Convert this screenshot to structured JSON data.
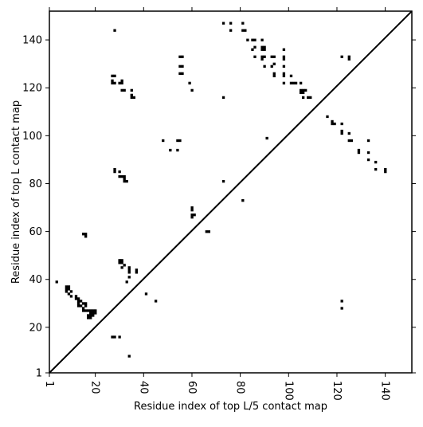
{
  "chart_data": {
    "type": "scatter",
    "title": "",
    "xlabel": "Residue index of top L/5 contact map",
    "ylabel": "Residue index of top L contact map",
    "xlim": [
      1,
      151
    ],
    "ylim": [
      1,
      152
    ],
    "x_ticks": [
      1,
      20,
      40,
      60,
      80,
      100,
      120,
      140
    ],
    "y_ticks": [
      1,
      20,
      40,
      60,
      80,
      100,
      120,
      140
    ],
    "x_tick_labels": [
      "1",
      "20",
      "40",
      "60",
      "80",
      "100",
      "120",
      "140"
    ],
    "y_tick_labels": [
      "1",
      "20",
      "40",
      "60",
      "80",
      "100",
      "120",
      "140"
    ],
    "x_tick_rotation": -90,
    "grid": false,
    "diagonal_line": true,
    "marker": "square",
    "marker_color": "#000000",
    "points": [
      [
        28,
        144
      ],
      [
        73,
        147
      ],
      [
        76,
        147
      ],
      [
        81,
        147
      ],
      [
        76,
        144
      ],
      [
        81,
        144
      ],
      [
        82,
        144
      ],
      [
        83,
        140
      ],
      [
        85,
        140
      ],
      [
        86,
        140
      ],
      [
        89,
        140
      ],
      [
        86,
        137
      ],
      [
        85,
        136
      ],
      [
        89,
        137
      ],
      [
        90,
        137
      ],
      [
        89,
        136
      ],
      [
        90,
        136
      ],
      [
        98,
        136
      ],
      [
        86,
        133
      ],
      [
        89,
        133
      ],
      [
        90,
        133
      ],
      [
        89,
        132
      ],
      [
        93,
        133
      ],
      [
        94,
        133
      ],
      [
        98,
        133
      ],
      [
        98,
        132
      ],
      [
        122,
        133
      ],
      [
        125,
        133
      ],
      [
        125,
        132
      ],
      [
        55,
        133
      ],
      [
        56,
        133
      ],
      [
        55,
        129
      ],
      [
        56,
        129
      ],
      [
        90,
        129
      ],
      [
        93,
        129
      ],
      [
        94,
        130
      ],
      [
        98,
        129
      ],
      [
        94,
        126
      ],
      [
        94,
        125
      ],
      [
        98,
        126
      ],
      [
        98,
        125
      ],
      [
        55,
        126
      ],
      [
        56,
        126
      ],
      [
        27,
        125
      ],
      [
        28,
        125
      ],
      [
        27,
        123
      ],
      [
        27,
        122
      ],
      [
        28,
        122
      ],
      [
        30,
        122
      ],
      [
        31,
        123
      ],
      [
        31,
        122
      ],
      [
        59,
        122
      ],
      [
        98,
        122
      ],
      [
        101,
        122
      ],
      [
        102,
        122
      ],
      [
        103,
        122
      ],
      [
        105,
        122
      ],
      [
        31,
        119
      ],
      [
        32,
        119
      ],
      [
        35,
        119
      ],
      [
        60,
        119
      ],
      [
        105,
        119
      ],
      [
        106,
        119
      ],
      [
        107,
        119
      ],
      [
        105,
        118
      ],
      [
        106,
        118
      ],
      [
        35,
        117
      ],
      [
        35,
        116
      ],
      [
        36,
        116
      ],
      [
        73,
        116
      ],
      [
        106,
        116
      ],
      [
        108,
        116
      ],
      [
        109,
        116
      ],
      [
        101,
        125
      ],
      [
        116,
        108
      ],
      [
        118,
        106
      ],
      [
        118,
        105
      ],
      [
        119,
        105
      ],
      [
        122,
        105
      ],
      [
        122,
        102
      ],
      [
        122,
        101
      ],
      [
        125,
        101
      ],
      [
        125,
        98
      ],
      [
        126,
        98
      ],
      [
        129,
        94
      ],
      [
        129,
        93
      ],
      [
        133,
        98
      ],
      [
        133,
        93
      ],
      [
        133,
        90
      ],
      [
        136,
        89
      ],
      [
        136,
        86
      ],
      [
        140,
        86
      ],
      [
        140,
        85
      ],
      [
        91,
        99
      ],
      [
        48,
        98
      ],
      [
        54,
        98
      ],
      [
        55,
        98
      ],
      [
        51,
        94
      ],
      [
        54,
        94
      ],
      [
        28,
        86
      ],
      [
        28,
        85
      ],
      [
        30,
        85
      ],
      [
        30,
        83
      ],
      [
        31,
        83
      ],
      [
        32,
        83
      ],
      [
        32,
        82
      ],
      [
        32,
        81
      ],
      [
        33,
        81
      ],
      [
        73,
        81
      ],
      [
        81,
        73
      ],
      [
        60,
        70
      ],
      [
        60,
        69
      ],
      [
        60,
        67
      ],
      [
        61,
        67
      ],
      [
        60,
        66
      ],
      [
        66,
        60
      ],
      [
        67,
        60
      ],
      [
        15,
        59
      ],
      [
        16,
        59
      ],
      [
        16,
        58
      ],
      [
        30,
        48
      ],
      [
        31,
        48
      ],
      [
        30,
        47
      ],
      [
        31,
        47
      ],
      [
        31,
        45
      ],
      [
        32,
        46
      ],
      [
        34,
        45
      ],
      [
        34,
        44
      ],
      [
        37,
        44
      ],
      [
        34,
        43
      ],
      [
        37,
        43
      ],
      [
        34,
        41
      ],
      [
        33,
        39
      ],
      [
        4,
        39
      ],
      [
        8,
        37
      ],
      [
        9,
        37
      ],
      [
        8,
        36
      ],
      [
        9,
        36
      ],
      [
        8,
        35
      ],
      [
        10,
        35
      ],
      [
        9,
        34
      ],
      [
        10,
        33
      ],
      [
        12,
        33
      ],
      [
        12,
        32
      ],
      [
        13,
        32
      ],
      [
        13,
        31
      ],
      [
        14,
        31
      ],
      [
        13,
        30
      ],
      [
        15,
        30
      ],
      [
        16,
        30
      ],
      [
        13,
        29
      ],
      [
        14,
        29
      ],
      [
        16,
        29
      ],
      [
        15,
        28
      ],
      [
        15,
        27
      ],
      [
        16,
        27
      ],
      [
        17,
        27
      ],
      [
        18,
        27
      ],
      [
        19,
        27
      ],
      [
        20,
        27
      ],
      [
        18,
        26
      ],
      [
        19,
        26
      ],
      [
        20,
        26
      ],
      [
        17,
        25
      ],
      [
        18,
        25
      ],
      [
        19,
        25
      ],
      [
        17,
        24
      ],
      [
        18,
        24
      ],
      [
        41,
        34
      ],
      [
        45,
        31
      ],
      [
        122,
        31
      ],
      [
        122,
        28
      ],
      [
        27,
        16
      ],
      [
        28,
        16
      ],
      [
        30,
        16
      ],
      [
        34,
        8
      ]
    ]
  }
}
